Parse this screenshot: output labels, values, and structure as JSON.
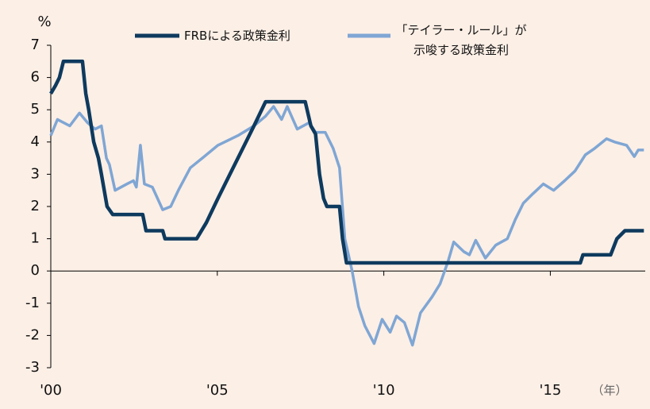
{
  "chart_data": {
    "type": "line",
    "y_unit": "%",
    "x_unit": "（年）",
    "xlim": [
      2000,
      2017.85
    ],
    "ylim": [
      -3,
      7
    ],
    "yticks": [
      -3,
      -2,
      -1,
      0,
      1,
      2,
      3,
      4,
      5,
      6,
      7
    ],
    "xticks": [
      {
        "value": 2000,
        "label": "'00"
      },
      {
        "value": 2005,
        "label": "'05"
      },
      {
        "value": 2010,
        "label": "'10"
      },
      {
        "value": 2015,
        "label": "'15"
      }
    ],
    "series": [
      {
        "name": "FRBによる政策金利",
        "color": "#0e3a5e",
        "x": [
          2000,
          2000.14,
          2000.26,
          2000.38,
          2000.95,
          2001.05,
          2001.14,
          2001.29,
          2001.43,
          2001.52,
          2001.69,
          2001.86,
          2002.76,
          2002.86,
          2003.36,
          2003.43,
          2004.38,
          2004.67,
          2005.02,
          2005.38,
          2005.74,
          2006.1,
          2006.45,
          2007.64,
          2007.81,
          2007.95,
          2008.07,
          2008.19,
          2008.29,
          2008.67,
          2008.76,
          2008.88,
          2015.9,
          2015.98,
          2016.81,
          2017.0,
          2017.24,
          2017.81
        ],
        "values": [
          5.5,
          5.75,
          6.0,
          6.5,
          6.5,
          5.5,
          5.0,
          4.0,
          3.5,
          3.0,
          2.0,
          1.75,
          1.75,
          1.25,
          1.25,
          1.0,
          1.0,
          1.5,
          2.25,
          3.0,
          3.75,
          4.5,
          5.25,
          5.25,
          4.5,
          4.25,
          3.0,
          2.25,
          2.0,
          2.0,
          1.0,
          0.25,
          0.25,
          0.5,
          0.5,
          1.0,
          1.25,
          1.25
        ]
      },
      {
        "name": "「テイラー・ルール」が示唆する政策金利",
        "color": "#7fa6d4",
        "x": [
          2000,
          2000.2,
          2000.57,
          2000.86,
          2001.1,
          2001.33,
          2001.52,
          2001.67,
          2001.76,
          2001.93,
          2002.29,
          2002.48,
          2002.57,
          2002.69,
          2002.81,
          2003.05,
          2003.36,
          2003.6,
          2003.83,
          2004.19,
          2004.55,
          2005.02,
          2005.62,
          2006.1,
          2006.45,
          2006.69,
          2006.93,
          2007.1,
          2007.4,
          2007.76,
          2007.95,
          2008.24,
          2008.48,
          2008.67,
          2008.83,
          2009.05,
          2009.24,
          2009.43,
          2009.71,
          2009.95,
          2010.19,
          2010.38,
          2010.62,
          2010.86,
          2011.1,
          2011.45,
          2011.69,
          2011.93,
          2012.1,
          2012.4,
          2012.57,
          2012.76,
          2013.05,
          2013.36,
          2013.71,
          2013.95,
          2014.19,
          2014.48,
          2014.79,
          2015.1,
          2015.43,
          2015.74,
          2016.05,
          2016.33,
          2016.69,
          2016.93,
          2017.29,
          2017.52,
          2017.64,
          2017.81
        ],
        "values": [
          4.2,
          4.7,
          4.5,
          4.9,
          4.6,
          4.4,
          4.5,
          3.5,
          3.3,
          2.5,
          2.7,
          2.8,
          2.6,
          3.9,
          2.7,
          2.6,
          1.9,
          2.0,
          2.5,
          3.2,
          3.5,
          3.9,
          4.2,
          4.5,
          4.8,
          5.1,
          4.7,
          5.1,
          4.4,
          4.6,
          4.3,
          4.3,
          3.8,
          3.2,
          1.0,
          0,
          -1.1,
          -1.7,
          -2.25,
          -1.5,
          -1.9,
          -1.4,
          -1.6,
          -2.3,
          -1.3,
          -0.8,
          -0.4,
          0.3,
          0.9,
          0.6,
          0.5,
          0.95,
          0.4,
          0.8,
          1.0,
          1.6,
          2.1,
          2.4,
          2.7,
          2.5,
          2.8,
          3.1,
          3.6,
          3.8,
          4.1,
          4.0,
          3.9,
          3.55,
          3.75,
          3.75
        ]
      }
    ]
  }
}
